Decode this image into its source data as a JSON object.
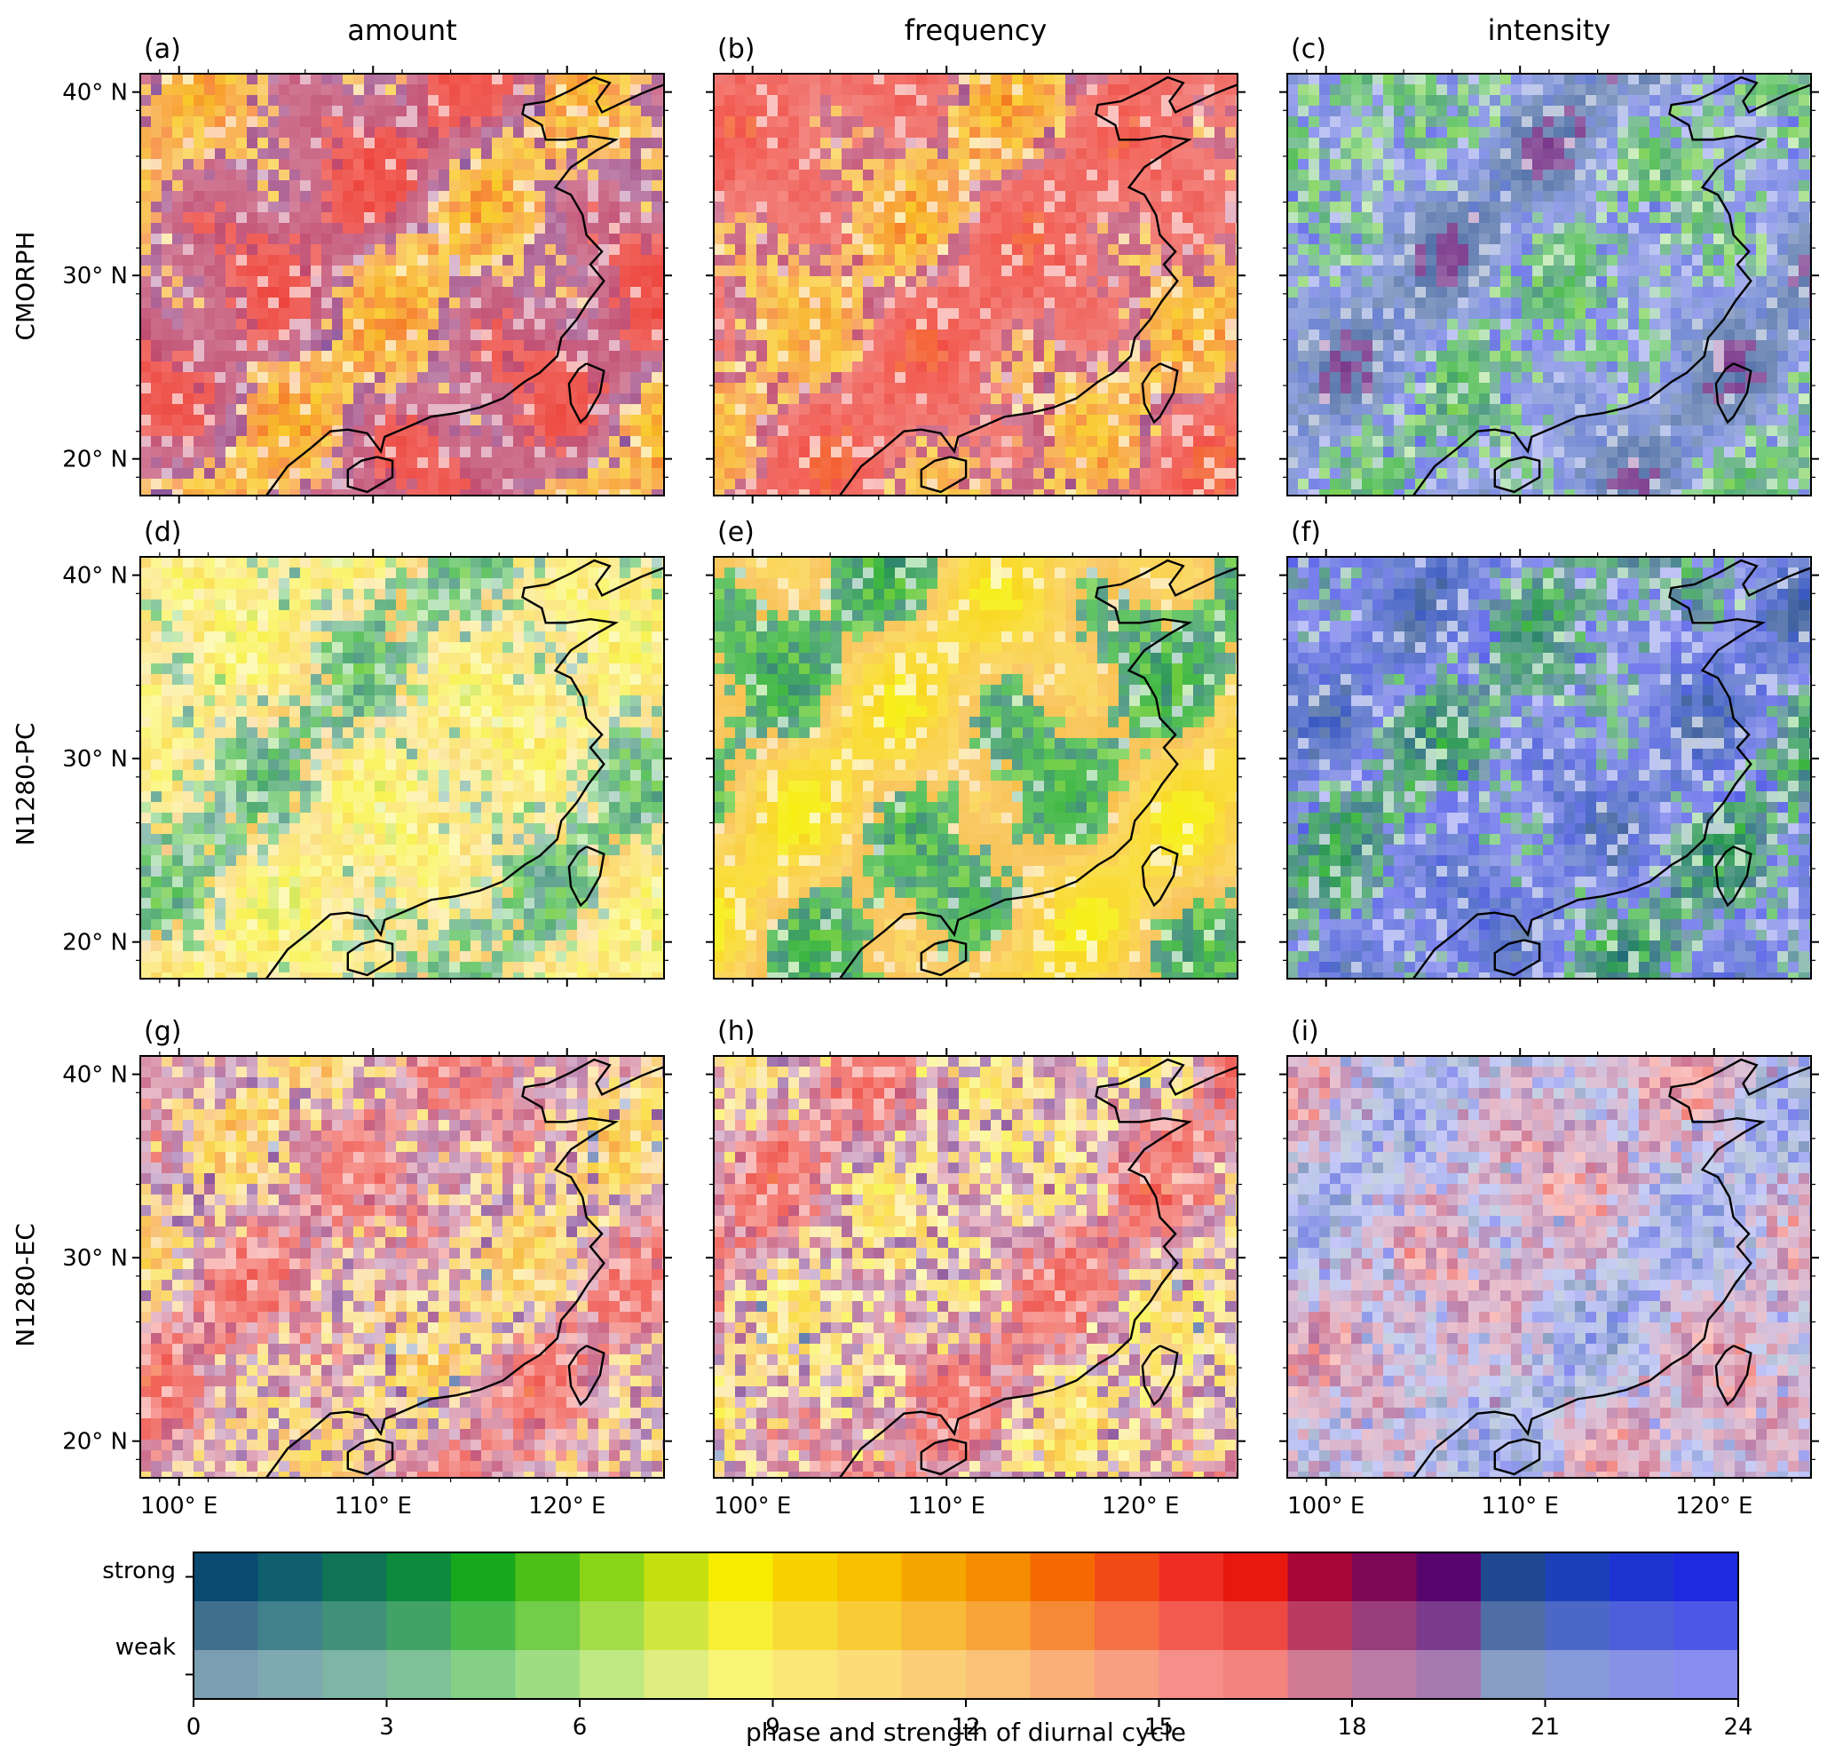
{
  "column_titles": [
    "amount",
    "frequency",
    "intensity"
  ],
  "row_labels": [
    "CMORPH",
    "N1280-PC",
    "N1280-EC"
  ],
  "panels": [
    {
      "label": "(a)",
      "field": "amount",
      "source": "CMORPH",
      "base_hour": 18,
      "mix_hour": 12,
      "strength": 0.85,
      "noise": 0.25
    },
    {
      "label": "(b)",
      "field": "frequency",
      "source": "CMORPH",
      "base_hour": 17,
      "mix_hour": 12,
      "strength": 0.85,
      "noise": 0.25
    },
    {
      "label": "(c)",
      "field": "intensity",
      "source": "CMORPH",
      "base_hour": 22,
      "mix_hour": 4,
      "strength": 0.75,
      "noise": 0.4
    },
    {
      "label": "(d)",
      "field": "amount",
      "source": "N1280-PC",
      "base_hour": 10,
      "mix_hour": 4,
      "strength": 0.7,
      "noise": 0.55
    },
    {
      "label": "(e)",
      "field": "frequency",
      "source": "N1280-PC",
      "base_hour": 11,
      "mix_hour": 4,
      "strength": 0.9,
      "noise": 0.15
    },
    {
      "label": "(f)",
      "field": "intensity",
      "source": "N1280-PC",
      "base_hour": 23,
      "mix_hour": 3,
      "strength": 0.9,
      "noise": 0.45
    },
    {
      "label": "(g)",
      "field": "amount",
      "source": "N1280-EC",
      "base_hour": 18,
      "mix_hour": 11,
      "strength": 0.7,
      "noise": 0.6
    },
    {
      "label": "(h)",
      "field": "frequency",
      "source": "N1280-EC",
      "base_hour": 18,
      "mix_hour": 10,
      "strength": 0.7,
      "noise": 0.6
    },
    {
      "label": "(i)",
      "field": "intensity",
      "source": "N1280-EC",
      "base_hour": 19,
      "mix_hour": 22,
      "strength": 0.5,
      "noise": 0.75
    }
  ],
  "map": {
    "lon_range": [
      98,
      125
    ],
    "lat_range": [
      18,
      41
    ],
    "lon_ticks": [
      100,
      110,
      120
    ],
    "lat_ticks": [
      20,
      30,
      40
    ],
    "lon_tick_labels": [
      "100° E",
      "110° E",
      "120° E"
    ],
    "lat_tick_labels": [
      "20° N",
      "30° N",
      "40° N"
    ]
  },
  "colorbar": {
    "label": "phase and strength of diurnal cycle",
    "strength_labels": [
      "strong",
      "weak"
    ],
    "ticks": [
      "0",
      "3",
      "6",
      "9",
      "12",
      "15",
      "18",
      "21",
      "24"
    ],
    "range": [
      0,
      24
    ],
    "n_bins": 24,
    "phase_colors": [
      "#0b4a70",
      "#0f5f6e",
      "#0e7455",
      "#0e8a3c",
      "#18a81c",
      "#4cc018",
      "#8ad418",
      "#c4e010",
      "#f6ec00",
      "#f8d200",
      "#f8be00",
      "#f6a600",
      "#f68c00",
      "#f46a00",
      "#f24a14",
      "#ee2e22",
      "#e8180e",
      "#a8063a",
      "#7e0858",
      "#58066e",
      "#204890",
      "#1c40b8",
      "#1e34d2",
      "#1e2ae0"
    ]
  }
}
